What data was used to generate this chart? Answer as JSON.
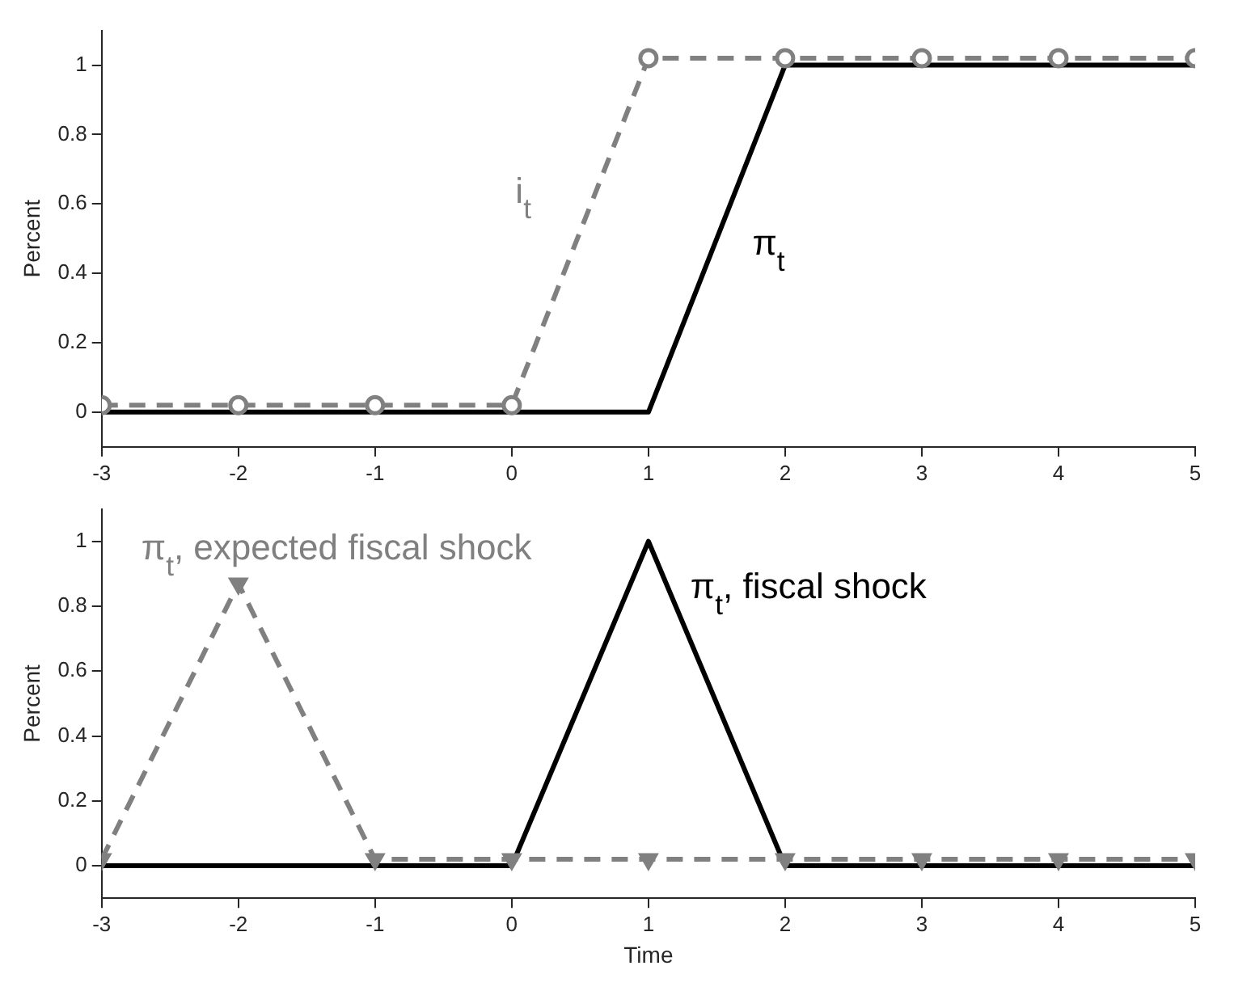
{
  "chart_data": [
    {
      "type": "line",
      "ylabel": "Percent",
      "x": [
        -3,
        -2,
        -1,
        0,
        1,
        2,
        3,
        4,
        5
      ],
      "xlim": [
        -3,
        5
      ],
      "xticks": [
        -3,
        -2,
        -1,
        0,
        1,
        2,
        3,
        4,
        5
      ],
      "ylim": [
        -0.1,
        1.1
      ],
      "yticks": [
        0,
        0.2,
        0.4,
        0.6,
        0.8,
        1
      ],
      "grid": false,
      "legend": false,
      "series": [
        {
          "name": "π$_{t}$",
          "color": "#000000",
          "line_style": "solid",
          "marker": "none",
          "values": [
            0,
            0,
            0,
            0,
            0,
            1,
            1,
            1,
            1
          ]
        },
        {
          "name": "i$_{t}$",
          "color": "#808080",
          "line_style": "dashed",
          "marker": "circle",
          "values": [
            0.02,
            0.02,
            0.02,
            0.02,
            1.02,
            1.02,
            1.02,
            1.02,
            1.02
          ]
        }
      ]
    },
    {
      "type": "line",
      "xlabel": "Time",
      "ylabel": "Percent",
      "x": [
        -3,
        -2,
        -1,
        0,
        1,
        2,
        3,
        4,
        5
      ],
      "xlim": [
        -3,
        5
      ],
      "xticks": [
        -3,
        -2,
        -1,
        0,
        1,
        2,
        3,
        4,
        5
      ],
      "ylim": [
        -0.1,
        1.1
      ],
      "yticks": [
        0,
        0.2,
        0.4,
        0.6,
        0.8,
        1
      ],
      "grid": false,
      "legend": false,
      "series": [
        {
          "name": "π$_{t}$, fiscal shock",
          "color": "#000000",
          "line_style": "solid",
          "marker": "none",
          "values": [
            0,
            0,
            0,
            0,
            1,
            0,
            0,
            0,
            0
          ]
        },
        {
          "name": "π$_{t}$, expected fiscal shock",
          "color": "#808080",
          "line_style": "dashed",
          "marker": "triangle",
          "values": [
            0.02,
            0.87,
            0.02,
            0.02,
            0.02,
            0.02,
            0.02,
            0.02,
            0.02
          ]
        }
      ]
    }
  ]
}
